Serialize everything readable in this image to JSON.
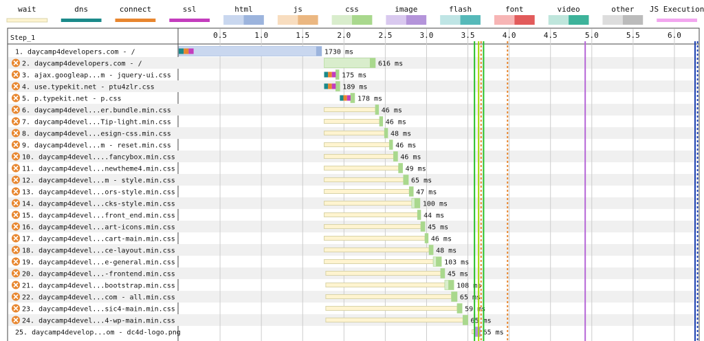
{
  "legend": [
    {
      "label": "wait",
      "colors": [
        "#fff4d0",
        "#d8d3a8"
      ],
      "split": false
    },
    {
      "label": "dns",
      "colors": [
        "#1b8a8a",
        "#1b8a8a"
      ],
      "split": false
    },
    {
      "label": "connect",
      "colors": [
        "#e8862e",
        "#e8862e"
      ],
      "split": false
    },
    {
      "label": "ssl",
      "colors": [
        "#c33dbd",
        "#c33dbd"
      ],
      "split": false
    },
    {
      "label": "html",
      "colors": [
        "#c9d7ef",
        "#9cb4dd"
      ],
      "split": true
    },
    {
      "label": "js",
      "colors": [
        "#f8ddbf",
        "#ebb781"
      ],
      "split": true
    },
    {
      "label": "css",
      "colors": [
        "#d9edcc",
        "#a9d88d"
      ],
      "split": true
    },
    {
      "label": "image",
      "colors": [
        "#d9c9ef",
        "#b494da"
      ],
      "split": true
    },
    {
      "label": "flash",
      "colors": [
        "#bfe5e5",
        "#56b9b9"
      ],
      "split": true
    },
    {
      "label": "font",
      "colors": [
        "#f7b5b5",
        "#e25b5b"
      ],
      "split": true
    },
    {
      "label": "video",
      "colors": [
        "#bfe6dc",
        "#3db39a"
      ],
      "split": true
    },
    {
      "label": "other",
      "colors": [
        "#dddddd",
        "#bbbbbb"
      ],
      "split": true
    },
    {
      "label": "JS Execution",
      "colors": [
        "#f2a6ef",
        "#f2a6ef"
      ],
      "split": false
    }
  ],
  "colors": {
    "row_alt": "#f0f0f0",
    "grid": "#cccccc",
    "start_render": "#28c028",
    "dom_content": "#a3d900",
    "dom_interactive": "#e8862e",
    "on_load": "#b565d6",
    "doc_complete": "#1a3fb0",
    "warning_icon": "#e8862e"
  },
  "chart_data": {
    "type": "waterfall",
    "title": "",
    "step_label": "Step_1",
    "x_unit": "seconds",
    "x_range": [
      0,
      6.3
    ],
    "ticks": [
      0.5,
      1.0,
      1.5,
      2.0,
      2.5,
      3.0,
      3.5,
      4.0,
      4.5,
      5.0,
      5.5,
      6.0
    ],
    "tick_labels": [
      "0.5",
      "1.0",
      "1.5",
      "2.0",
      "2.5",
      "3.0",
      "3.5",
      "4.0",
      "4.5",
      "5.0",
      "5.5",
      "6.0"
    ],
    "markers": [
      {
        "at": 3.58,
        "color": "#28c028",
        "dashed": false
      },
      {
        "at": 3.63,
        "color": "#a3d900",
        "dashed": false
      },
      {
        "at": 3.66,
        "color": "#e8862e",
        "dashed": true
      },
      {
        "at": 3.69,
        "color": "#28c028",
        "dashed": false
      },
      {
        "at": 3.98,
        "color": "#e8862e",
        "dashed": true
      },
      {
        "at": 4.92,
        "color": "#b565d6",
        "dashed": false
      },
      {
        "at": 6.25,
        "color": "#1a3fb0",
        "dashed": false
      },
      {
        "at": 6.28,
        "color": "#1a3fb0",
        "dashed": true
      }
    ],
    "requests": [
      {
        "label": "1. daycamp4developers.com - /",
        "type": "html",
        "warn": false,
        "start": 0.0,
        "wait_end": 0.0,
        "dl_start": 0.0,
        "end": 1.73,
        "conn": [
          0.0,
          0.18
        ],
        "duration": "1730 ms"
      },
      {
        "label": "2. daycamp4developers.com - /",
        "type": "css",
        "warn": true,
        "start": 1.76,
        "wait_end": 1.76,
        "dl_start": 1.76,
        "end": 2.38,
        "conn": null,
        "duration": "616 ms"
      },
      {
        "label": "3. ajax.googleap...m - jquery-ui.css",
        "type": "css",
        "warn": true,
        "start": 1.76,
        "wait_end": 1.76,
        "dl_start": 1.9,
        "end": 1.94,
        "conn": [
          1.76,
          1.9
        ],
        "duration": "175 ms"
      },
      {
        "label": "4. use.typekit.net - ptu4zlr.css",
        "type": "css",
        "warn": true,
        "start": 1.76,
        "wait_end": 1.76,
        "dl_start": 1.9,
        "end": 1.95,
        "conn": [
          1.76,
          1.9
        ],
        "duration": "189 ms"
      },
      {
        "label": "5. p.typekit.net - p.css",
        "type": "css",
        "warn": true,
        "start": 1.95,
        "wait_end": 1.95,
        "dl_start": 2.08,
        "end": 2.13,
        "conn": [
          1.95,
          2.08
        ],
        "duration": "178 ms"
      },
      {
        "label": "6. daycamp4devel...er.bundle.min.css",
        "type": "css",
        "warn": true,
        "start": 1.76,
        "wait_end": 2.38,
        "dl_start": 2.38,
        "end": 2.42,
        "conn": null,
        "duration": "46 ms"
      },
      {
        "label": "7. daycamp4devel...Tip-light.min.css",
        "type": "css",
        "warn": true,
        "start": 1.76,
        "wait_end": 2.43,
        "dl_start": 2.43,
        "end": 2.47,
        "conn": null,
        "duration": "46 ms"
      },
      {
        "label": "8. daycamp4devel...esign-css.min.css",
        "type": "css",
        "warn": true,
        "start": 1.76,
        "wait_end": 2.49,
        "dl_start": 2.49,
        "end": 2.53,
        "conn": null,
        "duration": "48 ms"
      },
      {
        "label": "9. daycamp4devel...m - reset.min.css",
        "type": "css",
        "warn": true,
        "start": 1.76,
        "wait_end": 2.55,
        "dl_start": 2.55,
        "end": 2.59,
        "conn": null,
        "duration": "46 ms"
      },
      {
        "label": "10. daycamp4devel....fancybox.min.css",
        "type": "css",
        "warn": true,
        "start": 1.76,
        "wait_end": 2.6,
        "dl_start": 2.6,
        "end": 2.65,
        "conn": null,
        "duration": "46 ms"
      },
      {
        "label": "11. daycamp4devel...newtheme4.min.css",
        "type": "css",
        "warn": true,
        "start": 1.76,
        "wait_end": 2.66,
        "dl_start": 2.66,
        "end": 2.71,
        "conn": null,
        "duration": "49 ms"
      },
      {
        "label": "12. daycamp4devel...m - style.min.css",
        "type": "css",
        "warn": true,
        "start": 1.76,
        "wait_end": 2.72,
        "dl_start": 2.72,
        "end": 2.78,
        "conn": null,
        "duration": "65 ms"
      },
      {
        "label": "13. daycamp4devel...ors-style.min.css",
        "type": "css",
        "warn": true,
        "start": 1.76,
        "wait_end": 2.79,
        "dl_start": 2.79,
        "end": 2.84,
        "conn": null,
        "duration": "47 ms"
      },
      {
        "label": "14. daycamp4devel...cks-style.min.css",
        "type": "css",
        "warn": true,
        "start": 1.76,
        "wait_end": 2.82,
        "dl_start": 2.82,
        "end": 2.92,
        "conn": null,
        "duration": "100 ms"
      },
      {
        "label": "15. daycamp4devel...front_end.min.css",
        "type": "css",
        "warn": true,
        "start": 1.76,
        "wait_end": 2.89,
        "dl_start": 2.89,
        "end": 2.93,
        "conn": null,
        "duration": "44 ms"
      },
      {
        "label": "16. daycamp4devel...art-icons.min.css",
        "type": "css",
        "warn": true,
        "start": 1.76,
        "wait_end": 2.93,
        "dl_start": 2.93,
        "end": 2.98,
        "conn": null,
        "duration": "45 ms"
      },
      {
        "label": "17. daycamp4devel...cart-main.min.css",
        "type": "css",
        "warn": true,
        "start": 1.76,
        "wait_end": 2.98,
        "dl_start": 2.98,
        "end": 3.02,
        "conn": null,
        "duration": "46 ms"
      },
      {
        "label": "18. daycamp4devel...ce-layout.min.css",
        "type": "css",
        "warn": true,
        "start": 1.76,
        "wait_end": 3.03,
        "dl_start": 3.03,
        "end": 3.08,
        "conn": null,
        "duration": "48 ms"
      },
      {
        "label": "19. daycamp4devel...e-general.min.css",
        "type": "css",
        "warn": true,
        "start": 1.76,
        "wait_end": 3.08,
        "dl_start": 3.08,
        "end": 3.18,
        "conn": null,
        "duration": "103 ms"
      },
      {
        "label": "20. daycamp4devel...-frontend.min.css",
        "type": "css",
        "warn": true,
        "start": 1.78,
        "wait_end": 3.17,
        "dl_start": 3.17,
        "end": 3.22,
        "conn": null,
        "duration": "45 ms"
      },
      {
        "label": "21. daycamp4devel...bootstrap.min.css",
        "type": "css",
        "warn": true,
        "start": 1.78,
        "wait_end": 3.22,
        "dl_start": 3.22,
        "end": 3.33,
        "conn": null,
        "duration": "108 ms"
      },
      {
        "label": "22. daycamp4devel...com - all.min.css",
        "type": "css",
        "warn": true,
        "start": 1.78,
        "wait_end": 3.3,
        "dl_start": 3.3,
        "end": 3.37,
        "conn": null,
        "duration": "65 ms"
      },
      {
        "label": "23. daycamp4devel...sic4-main.min.css",
        "type": "css",
        "warn": true,
        "start": 1.78,
        "wait_end": 3.37,
        "dl_start": 3.37,
        "end": 3.43,
        "conn": null,
        "duration": "59 ms"
      },
      {
        "label": "24. daycamp4devel...4-wp-main.min.css",
        "type": "css",
        "warn": true,
        "start": 1.78,
        "wait_end": 3.44,
        "dl_start": 3.44,
        "end": 3.5,
        "conn": null,
        "duration": "65 ms"
      },
      {
        "label": "25. daycamp4develop...om - dc4d-logo.png",
        "type": "image",
        "warn": false,
        "start": 3.55,
        "wait_end": 3.58,
        "dl_start": 3.58,
        "end": 3.65,
        "conn": null,
        "duration": "65 ms"
      }
    ]
  }
}
